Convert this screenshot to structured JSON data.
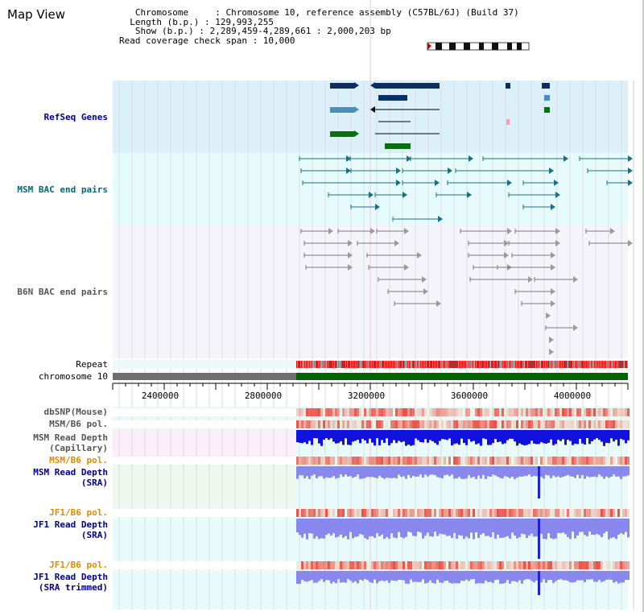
{
  "page_title": "Map View",
  "info": {
    "chromosome": "   Chromosome     : Chromosome 10, reference assembly (C57BL/6J) (Build 37)",
    "length": "  Length (b.p.) : 129,993,255",
    "show": "   Show (b.p.) : 2,289,459-4,289,661 : 2,000,203 bp",
    "coverage": "Read coverage check span : 10,000"
  },
  "colors": {
    "refseq_bg": "#dcf0fa",
    "msm_bac_bg": "#e6fbfb",
    "b6n_bac_bg": "#f4f4fa",
    "refseq_label": "#00008b",
    "msm_bac_label": "#00697a",
    "b6n_label": "#555555",
    "chromosome_green": "#006400",
    "chromosome_gray": "#6e6e6e",
    "repeat_red": "#dd1111",
    "depth_blue": "#1111dd",
    "depth_sra": "#8888ee",
    "pol_orange": "#e08a00"
  },
  "tracks": {
    "refseq": "RefSeq Genes",
    "msm_bac": "MSM BAC end pairs",
    "b6n_bac": "B6N BAC end pairs",
    "repeat": "Repeat",
    "chromosome": "chromosome 10",
    "dbsnp": "dbSNP(Mouse)",
    "msm_b6_pol_1": "MSM/B6 pol.",
    "msm_depth_cap": "MSM Read Depth\n(Capillary)",
    "msm_b6_pol_2": "MSM/B6 pol.",
    "msm_depth_sra": "MSM Read Depth\n(SRA)",
    "jf1_b6_pol_1": "JF1/B6 pol.",
    "jf1_depth_sra": "JF1 Read Depth\n(SRA)",
    "jf1_b6_pol_2": "JF1/B6 pol.",
    "jf1_depth_trim": "JF1 Read Depth\n(SRA trimmed)"
  },
  "axis": {
    "ticks": [
      "2400000",
      "2800000",
      "3200000",
      "3600000",
      "4000000"
    ]
  }
}
